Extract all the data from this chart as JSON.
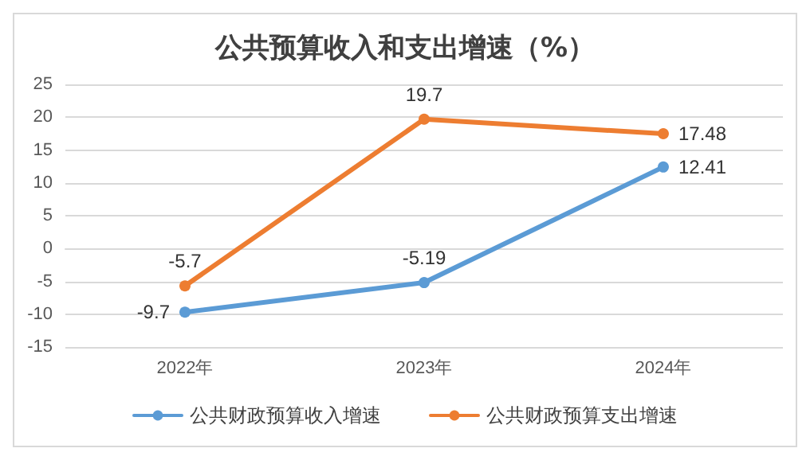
{
  "chart_data": {
    "type": "line",
    "title": "公共预算收入和支出增速（%）",
    "categories": [
      "2022年",
      "2023年",
      "2024年"
    ],
    "series": [
      {
        "name": "公共财政预算收入增速",
        "color": "#5b9bd5",
        "values": [
          -9.7,
          -5.19,
          12.41
        ]
      },
      {
        "name": "公共财政预算支出增速",
        "color": "#ed7d31",
        "values": [
          -5.7,
          19.7,
          17.48
        ]
      }
    ],
    "ylim": [
      -15,
      25
    ],
    "yticks": [
      -15,
      -10,
      -5,
      0,
      5,
      10,
      15,
      20,
      25
    ],
    "grid": "y",
    "legend": "bottom",
    "marker": "circle",
    "line_style": "solid",
    "data_labels": true
  }
}
